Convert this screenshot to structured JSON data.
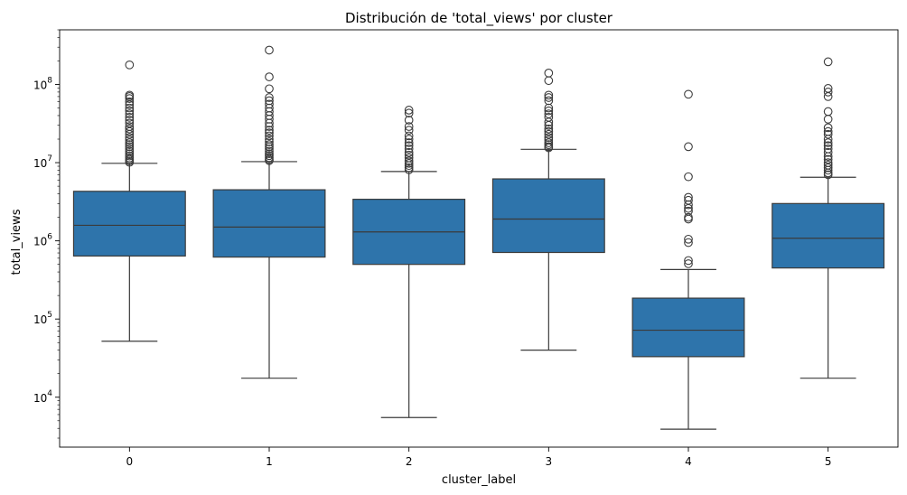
{
  "chart_data": {
    "type": "box",
    "title": "Distribución de 'total_views' por cluster",
    "xlabel": "cluster_label",
    "ylabel": "total_views",
    "yscale": "log",
    "ylim": [
      2300,
      500000000
    ],
    "yticks": [
      {
        "value": 10000,
        "base": "10",
        "exp": "4"
      },
      {
        "value": 100000,
        "base": "10",
        "exp": "5"
      },
      {
        "value": 1000000,
        "base": "10",
        "exp": "6"
      },
      {
        "value": 10000000,
        "base": "10",
        "exp": "7"
      },
      {
        "value": 100000000,
        "base": "10",
        "exp": "8"
      }
    ],
    "box_color": "#2e74ab",
    "line_color": "#3b3b3b",
    "grid": false,
    "categories": [
      "0",
      "1",
      "2",
      "3",
      "4",
      "5"
    ],
    "boxes": [
      {
        "category": "0",
        "whisker_low": 52000,
        "q1": 640000,
        "median": 1580000,
        "q3": 4300000,
        "whisker_high": 9800000,
        "outliers": [
          178000000,
          73000000,
          70000000,
          66000000,
          60000000,
          55000000,
          50000000,
          46000000,
          42000000,
          38000000,
          35000000,
          32000000,
          29000000,
          27000000,
          25000000,
          23000000,
          21000000,
          19500000,
          18000000,
          17000000,
          16000000,
          15000000,
          14000000,
          13000000,
          12200000,
          11500000,
          11000000,
          10500000,
          10100000
        ]
      },
      {
        "category": "1",
        "whisker_low": 17500,
        "q1": 620000,
        "median": 1500000,
        "q3": 4500000,
        "whisker_high": 10300000,
        "outliers": [
          275000000,
          125000000,
          88000000,
          68000000,
          62000000,
          56000000,
          50000000,
          45000000,
          40000000,
          36000000,
          32000000,
          29000000,
          26000000,
          24000000,
          22000000,
          20000000,
          18500000,
          17000000,
          16000000,
          15000000,
          14000000,
          13000000,
          12300000,
          11600000,
          11000000,
          10600000
        ]
      },
      {
        "category": "2",
        "whisker_low": 5500,
        "q1": 500000,
        "median": 1300000,
        "q3": 3400000,
        "whisker_high": 7700000,
        "outliers": [
          47000000,
          43000000,
          35000000,
          29000000,
          26000000,
          22000000,
          20000000,
          18000000,
          16500000,
          15000000,
          13500000,
          12500000,
          11500000,
          10500000,
          9800000,
          9200000,
          8600000,
          8100000
        ]
      },
      {
        "category": "3",
        "whisker_low": 40000,
        "q1": 710000,
        "median": 1900000,
        "q3": 6200000,
        "whisker_high": 14800000,
        "outliers": [
          140000000,
          112000000,
          73000000,
          68000000,
          62000000,
          50000000,
          46000000,
          42000000,
          38000000,
          33000000,
          30000000,
          27000000,
          25000000,
          23000000,
          21000000,
          19500000,
          18000000,
          17000000,
          16000000,
          15500000
        ]
      },
      {
        "category": "4",
        "whisker_low": 3900,
        "q1": 33000,
        "median": 72000,
        "q3": 185000,
        "whisker_high": 430000,
        "outliers": [
          75000000,
          16000000,
          6600000,
          3600000,
          3300000,
          2900000,
          2600000,
          2400000,
          2000000,
          1900000,
          1050000,
          950000,
          560000,
          510000
        ]
      },
      {
        "category": "5",
        "whisker_low": 17500,
        "q1": 450000,
        "median": 1080000,
        "q3": 3000000,
        "whisker_high": 6500000,
        "outliers": [
          195000000,
          89000000,
          80000000,
          70000000,
          45000000,
          36000000,
          28000000,
          25000000,
          23000000,
          20000000,
          18000000,
          16500000,
          15000000,
          13500000,
          12000000,
          11000000,
          10000000,
          9300000,
          8600000,
          8000000,
          7400000,
          7000000
        ]
      }
    ]
  }
}
